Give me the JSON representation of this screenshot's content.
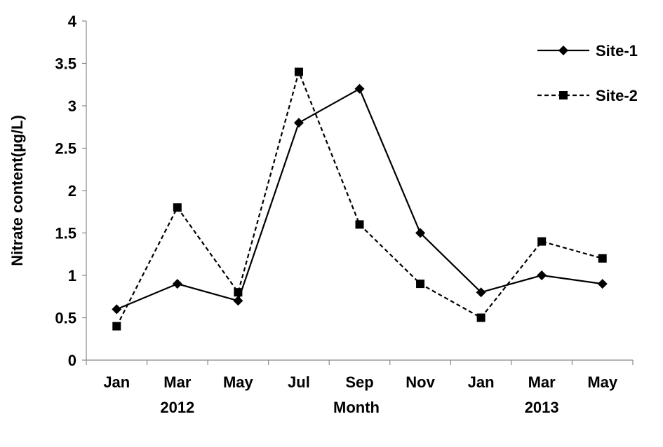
{
  "chart_data": {
    "type": "line",
    "categories": [
      "Jan",
      "Mar",
      "May",
      "Jul",
      "Sep",
      "Nov",
      "Jan",
      "Mar",
      "May"
    ],
    "category_groups": [
      {
        "label": "2012",
        "center_index": 1
      },
      {
        "label": "2013",
        "center_index": 7
      }
    ],
    "series": [
      {
        "name": "Site-1",
        "marker": "diamond",
        "line_style": "solid",
        "color": "#000000",
        "values": [
          0.6,
          0.9,
          0.7,
          2.8,
          3.2,
          1.5,
          0.8,
          1.0,
          0.9
        ]
      },
      {
        "name": "Site-2",
        "marker": "square",
        "line_style": "dashed",
        "color": "#000000",
        "values": [
          0.4,
          1.8,
          0.8,
          3.4,
          1.6,
          0.9,
          0.5,
          1.4,
          1.2
        ]
      }
    ],
    "title": "",
    "xlabel": "Month",
    "ylabel": "Nitrate content(µg/L)",
    "ylim": [
      0,
      4
    ],
    "yticks": [
      "0",
      "0.5",
      "1",
      "1.5",
      "2",
      "2.5",
      "3",
      "3.5",
      "4"
    ],
    "grid": false,
    "legend_position": "top-right"
  }
}
